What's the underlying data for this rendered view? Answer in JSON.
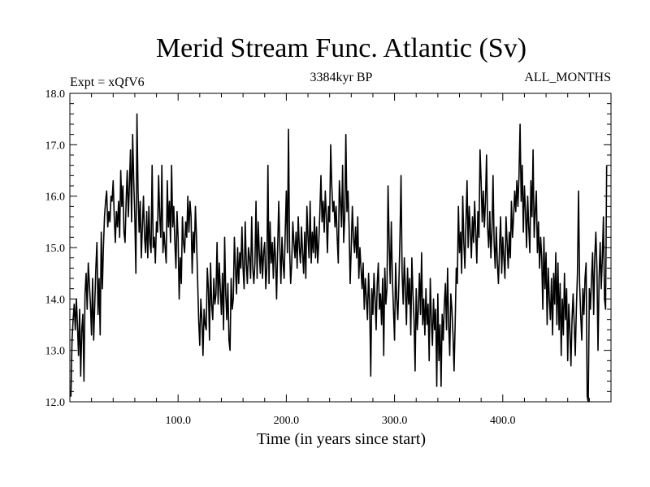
{
  "chart_data": {
    "type": "line",
    "title": "Merid Stream Func. Atlantic (Sv)",
    "subtitle_left": "Expt = xQfV6",
    "subtitle_center": "3384kyr BP",
    "subtitle_right": "ALL_MONTHS",
    "xlabel": "Time (in years since start)",
    "ylabel": "",
    "xlim": [
      0,
      500
    ],
    "ylim": [
      12.0,
      18.0
    ],
    "x_tick_values": [
      100,
      200,
      300,
      400
    ],
    "x_tick_labels": [
      "100.0",
      "200.0",
      "300.0",
      "400.0"
    ],
    "y_tick_values": [
      12,
      13,
      14,
      15,
      16,
      17,
      18
    ],
    "y_tick_labels": [
      "12.0",
      "13.0",
      "14.0",
      "15.0",
      "16.0",
      "17.0",
      "18.0"
    ],
    "grid": false,
    "series": [
      {
        "name": "Merid Stream Func. Atlantic",
        "x_start": 1,
        "x_step": 1,
        "values": [
          12.1,
          13.2,
          13.6,
          13.9,
          13.4,
          14.0,
          13.5,
          12.9,
          13.8,
          12.5,
          13.4,
          13.7,
          12.4,
          14.1,
          14.5,
          13.8,
          14.7,
          14.3,
          13.9,
          13.3,
          14.4,
          13.2,
          13.9,
          14.6,
          15.1,
          13.7,
          14.4,
          13.3,
          15.3,
          14.2,
          15.0,
          15.6,
          15.9,
          16.1,
          15.4,
          15.7,
          15.5,
          16.0,
          15.9,
          16.3,
          15.6,
          15.1,
          15.7,
          15.4,
          15.9,
          15.2,
          16.5,
          15.8,
          16.2,
          15.3,
          15.1,
          15.9,
          16.5,
          15.6,
          16.2,
          16.9,
          15.5,
          17.2,
          16.3,
          15.6,
          14.5,
          17.6,
          16.1,
          15.3,
          15.9,
          14.8,
          15.4,
          16.0,
          15.2,
          14.9,
          15.7,
          14.8,
          15.8,
          15.1,
          14.9,
          16.6,
          15.0,
          15.2,
          14.7,
          15.5,
          15.3,
          16.4,
          15.6,
          15.2,
          16.6,
          14.9,
          15.3,
          15.0,
          14.7,
          16.3,
          15.4,
          15.9,
          15.1,
          16.6,
          15.4,
          15.8,
          15.1,
          14.6,
          15.7,
          15.2,
          14.0,
          14.8,
          14.3,
          15.6,
          15.1,
          14.9,
          15.5,
          15.2,
          16.0,
          15.3,
          15.9,
          15.6,
          14.5,
          15.3,
          14.9,
          15.8,
          15.2,
          14.4,
          13.6,
          13.1,
          14.0,
          13.6,
          12.9,
          13.8,
          13.5,
          13.4,
          14.6,
          14.2,
          13.2,
          14.7,
          13.9,
          13.6,
          14.4,
          13.9,
          14.1,
          15.1,
          13.9,
          14.7,
          14.2,
          13.7,
          14.5,
          13.4,
          15.2,
          14.1,
          13.6,
          14.3,
          13.2,
          13.0,
          14.4,
          13.8,
          14.0,
          15.2,
          14.6,
          14.1,
          15.0,
          14.3,
          14.9,
          14.6,
          15.4,
          14.6,
          14.2,
          15.5,
          14.7,
          14.3,
          15.0,
          14.8,
          14.4,
          15.6,
          14.6,
          14.3,
          14.7,
          15.9,
          14.4,
          15.5,
          14.9,
          14.5,
          15.2,
          14.4,
          14.9,
          15.1,
          14.2,
          14.6,
          16.6,
          14.3,
          15.5,
          14.7,
          15.1,
          14.4,
          15.2,
          14.8,
          14.0,
          15.0,
          15.9,
          15.0,
          14.3,
          15.2,
          14.7,
          14.4,
          15.3,
          16.1,
          14.9,
          17.3,
          15.0,
          14.3,
          14.7,
          15.5,
          15.1,
          14.8,
          15.3,
          14.6,
          15.6,
          15.0,
          14.7,
          15.4,
          14.9,
          14.5,
          15.3,
          14.4,
          15.8,
          15.2,
          14.8,
          15.9,
          14.7,
          15.3,
          14.9,
          15.6,
          14.8,
          15.4,
          14.7,
          15.1,
          15.7,
          16.4,
          15.5,
          15.9,
          15.3,
          16.1,
          15.6,
          14.9,
          15.8,
          15.5,
          17.0,
          16.2,
          15.7,
          15.9,
          15.4,
          15.8,
          15.2,
          14.7,
          16.3,
          15.9,
          15.4,
          16.6,
          15.1,
          15.6,
          17.2,
          15.7,
          16.1,
          15.4,
          14.3,
          15.0,
          15.8,
          15.2,
          14.9,
          15.4,
          14.8,
          15.6,
          14.4,
          15.0,
          14.6,
          14.2,
          14.7,
          13.8,
          14.4,
          14.0,
          13.6,
          14.5,
          13.9,
          12.5,
          14.2,
          13.7,
          14.5,
          14.0,
          13.4,
          14.3,
          14.7,
          13.8,
          14.1,
          13.5,
          14.4,
          12.9,
          14.6,
          13.9,
          14.2,
          16.2,
          15.1,
          14.3,
          15.5,
          14.4,
          13.8,
          13.2,
          14.7,
          14.0,
          13.6,
          14.3,
          15.2,
          16.4,
          14.5,
          13.9,
          14.8,
          14.2,
          13.5,
          14.6,
          13.9,
          14.4,
          13.3,
          14.8,
          14.1,
          13.6,
          12.6,
          14.2,
          13.4,
          13.8,
          14.5,
          13.7,
          14.9,
          13.5,
          14.0,
          13.3,
          14.2,
          13.5,
          13.9,
          12.8,
          14.4,
          13.6,
          13.1,
          14.0,
          13.4,
          13.8,
          12.3,
          14.1,
          12.8,
          13.5,
          12.3,
          13.7,
          13.2,
          13.9,
          14.3,
          13.4,
          14.6,
          13.5,
          12.9,
          14.1,
          13.8,
          13.3,
          12.6,
          13.5,
          14.6,
          14.3,
          15.8,
          14.9,
          15.3,
          14.5,
          16.0,
          15.1,
          14.6,
          15.5,
          16.3,
          15.0,
          15.8,
          15.3,
          14.8,
          15.6,
          15.1,
          15.9,
          15.3,
          14.7,
          15.7,
          15.2,
          16.9,
          16.3,
          15.5,
          16.1,
          15.4,
          15.9,
          16.8,
          15.4,
          15.0,
          15.7,
          14.8,
          15.3,
          16.4,
          15.1,
          14.6,
          15.4,
          14.7,
          14.3,
          15.0,
          15.6,
          14.5,
          15.2,
          14.8,
          14.4,
          15.6,
          15.1,
          14.6,
          15.3,
          14.8,
          15.9,
          15.2,
          15.6,
          16.1,
          15.7,
          16.3,
          15.8,
          16.4,
          17.4,
          15.9,
          16.6,
          15.3,
          16.2,
          15.7,
          15.0,
          16.0,
          15.4,
          14.9,
          16.3,
          15.6,
          16.9,
          15.2,
          15.7,
          16.1,
          14.9,
          15.5,
          14.6,
          15.2,
          14.8,
          13.8,
          15.2,
          14.2,
          14.9,
          13.5,
          14.6,
          14.0,
          13.6,
          14.4,
          13.3,
          14.5,
          13.9,
          14.9,
          13.5,
          14.7,
          13.4,
          14.3,
          12.9,
          14.0,
          13.3,
          14.5,
          13.6,
          14.2,
          12.8,
          13.9,
          13.4,
          12.7,
          13.6,
          14.1,
          13.5,
          12.9,
          13.8,
          14.5,
          16.1,
          14.3,
          13.7,
          13.2,
          14.2,
          13.7,
          14.4,
          14.7,
          12.1,
          12.0,
          14.2,
          13.8,
          14.4,
          14.9,
          13.7,
          14.8,
          15.3,
          14.6,
          13.0,
          14.4,
          15.1,
          14.2,
          14.8,
          15.6,
          14.0,
          13.8,
          16.6
        ]
      }
    ]
  }
}
